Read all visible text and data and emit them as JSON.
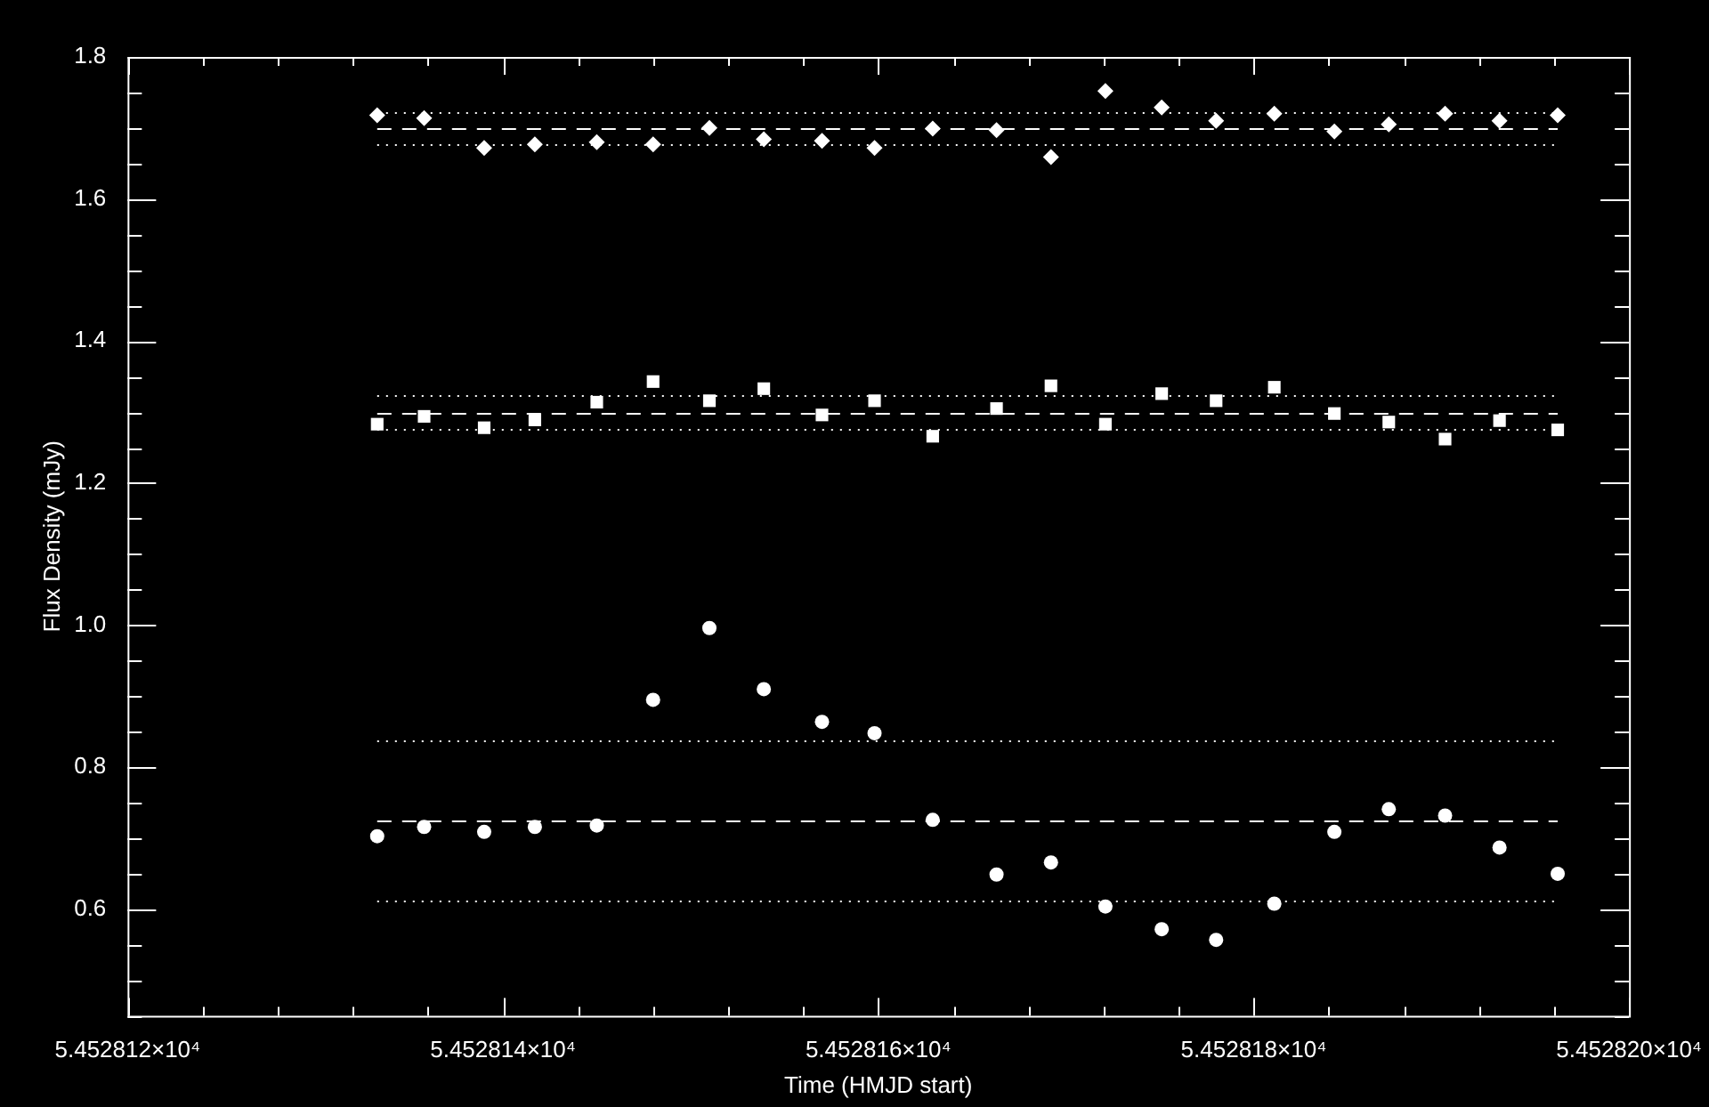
{
  "chart_data": {
    "type": "scatter",
    "xlabel": "Time (HMJD start)",
    "ylabel": "Flux Density (mJy)",
    "xlim": [
      54528.12,
      54528.2
    ],
    "xticks": [
      {
        "value": 54528.12,
        "label": "5.452812×10⁴"
      },
      {
        "value": 54528.124,
        "label": null
      },
      {
        "value": 54528.128,
        "label": null
      },
      {
        "value": 54528.132,
        "label": null
      },
      {
        "value": 54528.136,
        "label": null
      },
      {
        "value": 54528.14,
        "label": "5.452814×10⁴"
      },
      {
        "value": 54528.144,
        "label": null
      },
      {
        "value": 54528.148,
        "label": null
      },
      {
        "value": 54528.152,
        "label": null
      },
      {
        "value": 54528.156,
        "label": null
      },
      {
        "value": 54528.16,
        "label": "5.452816×10⁴"
      },
      {
        "value": 54528.164,
        "label": null
      },
      {
        "value": 54528.168,
        "label": null
      },
      {
        "value": 54528.172,
        "label": null
      },
      {
        "value": 54528.176,
        "label": null
      },
      {
        "value": 54528.18,
        "label": "5.452818×10⁴"
      },
      {
        "value": 54528.184,
        "label": null
      },
      {
        "value": 54528.188,
        "label": null
      },
      {
        "value": 54528.192,
        "label": null
      },
      {
        "value": 54528.196,
        "label": null
      },
      {
        "value": 54528.2,
        "label": "5.452820×10⁴"
      }
    ],
    "ylim": [
      0.45,
      1.8
    ],
    "yticks": [
      {
        "value": 0.45,
        "label": null
      },
      {
        "value": 0.5,
        "label": null
      },
      {
        "value": 0.55,
        "label": null
      },
      0.6,
      {
        "value": 0.65,
        "label": null
      },
      {
        "value": 0.7,
        "label": null
      },
      {
        "value": 0.75,
        "label": null
      },
      0.8,
      {
        "value": 0.85,
        "label": null
      },
      {
        "value": 0.9,
        "label": null
      },
      {
        "value": 0.95,
        "label": null
      },
      {
        "value": 1.0,
        "label": "1.0"
      },
      {
        "value": 1.05,
        "label": null
      },
      {
        "value": 1.1,
        "label": null
      },
      {
        "value": 1.15,
        "label": null
      },
      1.2,
      {
        "value": 1.25,
        "label": null
      },
      {
        "value": 1.3,
        "label": null
      },
      {
        "value": 1.35,
        "label": null
      },
      1.4,
      {
        "value": 1.45,
        "label": null
      },
      {
        "value": 1.5,
        "label": null
      },
      {
        "value": 1.55,
        "label": null
      },
      1.6,
      {
        "value": 1.65,
        "label": null
      },
      {
        "value": 1.7,
        "label": null
      },
      {
        "value": 1.75,
        "label": null
      },
      1.8
    ],
    "x": [
      54528.1333,
      54528.1358,
      54528.139,
      54528.1417,
      54528.145,
      54528.148,
      54528.151,
      54528.1539,
      54528.157,
      54528.1598,
      54528.1629,
      54528.1663,
      54528.1692,
      54528.1721,
      54528.1751,
      54528.178,
      54528.1811,
      54528.1843,
      54528.1872,
      54528.1902,
      54528.1931,
      54528.1962
    ],
    "series": [
      {
        "color": "#ffffff",
        "marker": "diamond",
        "values": [
          1.718,
          1.714,
          1.672,
          1.677,
          1.68,
          1.677,
          1.7,
          1.684,
          1.682,
          1.672,
          1.699,
          1.697,
          1.659,
          1.752,
          1.729,
          1.71,
          1.72,
          1.695,
          1.705,
          1.72,
          1.71,
          1.718
        ]
      },
      {
        "color": "#ffffff",
        "marker": "square",
        "values": [
          1.283,
          1.294,
          1.278,
          1.289,
          1.314,
          1.343,
          1.316,
          1.333,
          1.296,
          1.316,
          1.266,
          1.305,
          1.337,
          1.283,
          1.326,
          1.316,
          1.335,
          1.298,
          1.286,
          1.262,
          1.288,
          1.275
        ]
      },
      {
        "color": "#ffffff",
        "marker": "circle",
        "values": [
          0.703,
          0.716,
          0.709,
          0.716,
          0.718,
          0.895,
          0.996,
          0.91,
          0.864,
          0.848,
          0.726,
          0.649,
          0.666,
          0.604,
          0.572,
          0.557,
          0.608,
          0.709,
          0.741,
          0.732,
          0.687,
          0.65
        ]
      }
    ],
    "ref_lines": [
      {
        "axis": "y",
        "value": 1.7,
        "color": "#ffffff",
        "line_style": "dashed"
      },
      {
        "axis": "y",
        "value": 1.722,
        "color": "#ffffff",
        "line_style": "dotted"
      },
      {
        "axis": "y",
        "value": 1.677,
        "color": "#ffffff",
        "line_style": "dotted"
      },
      {
        "axis": "y",
        "value": 1.3,
        "color": "#ffffff",
        "line_style": "dashed"
      },
      {
        "axis": "y",
        "value": 1.325,
        "color": "#ffffff",
        "line_style": "dotted"
      },
      {
        "axis": "y",
        "value": 1.276,
        "color": "#ffffff",
        "line_style": "dotted"
      },
      {
        "axis": "y",
        "value": 0.724,
        "color": "#ffffff",
        "line_style": "dashed"
      },
      {
        "axis": "y",
        "value": 0.8375,
        "color": "#ffffff",
        "line_style": "dotted"
      },
      {
        "axis": "y",
        "value": 0.612,
        "color": "#ffffff",
        "line_style": "dotted"
      }
    ]
  }
}
